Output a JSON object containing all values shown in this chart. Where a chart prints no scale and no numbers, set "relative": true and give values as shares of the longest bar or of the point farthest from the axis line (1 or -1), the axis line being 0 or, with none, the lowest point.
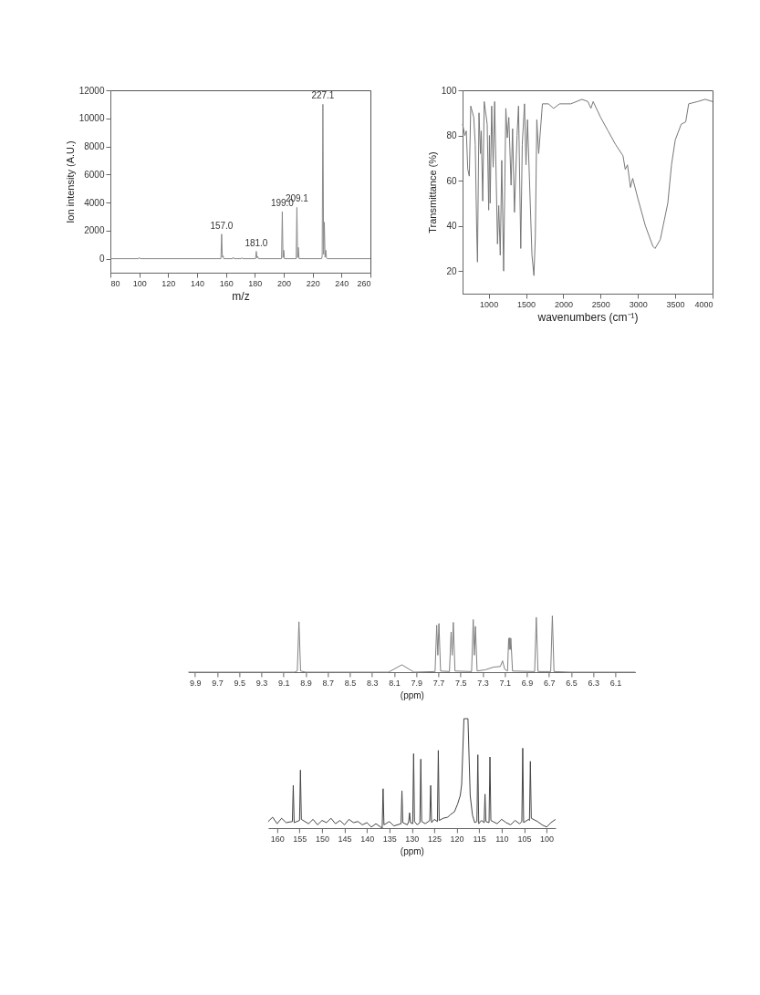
{
  "chart_data": [
    {
      "type": "line",
      "xlabel": "m/z",
      "ylabel": "Ion intensity (A.U.)",
      "xlim": [
        80,
        260
      ],
      "xticks": [
        80,
        100,
        120,
        140,
        160,
        180,
        200,
        220,
        240,
        260
      ],
      "ylim": [
        -1000,
        12000
      ],
      "yticks": [
        0,
        2000,
        4000,
        6000,
        8000,
        10000,
        12000
      ],
      "series": [
        {
          "color": "#8a8a8a",
          "x": [
            80,
            99.5,
            100,
            100.5,
            156.5,
            157,
            157.5,
            158,
            158.5,
            164.5,
            165,
            165.5,
            170.5,
            171,
            171.5,
            180.5,
            181,
            181.5,
            182,
            182.5,
            198.5,
            199,
            199.5,
            200,
            200.5,
            208.6,
            209.1,
            209.6,
            210.1,
            210.6,
            226.3,
            226.6,
            227.1,
            227.6,
            228.1,
            228.6,
            229.1,
            229.6,
            230,
            260
          ],
          "values": [
            0,
            0,
            80,
            0,
            0,
            1750,
            100,
            200,
            0,
            0,
            100,
            0,
            0,
            70,
            0,
            0,
            520,
            50,
            150,
            0,
            0,
            3350,
            80,
            600,
            0,
            0,
            3650,
            80,
            800,
            0,
            0,
            200,
            11000,
            300,
            2600,
            100,
            600,
            50,
            0,
            0
          ]
        }
      ],
      "annotations": [
        {
          "text": "157.0",
          "x": 157,
          "y": 1750
        },
        {
          "text": "181.0",
          "x": 181,
          "y": 520
        },
        {
          "text": "199.0",
          "x": 199,
          "y": 3350
        },
        {
          "text": "209.1",
          "x": 209.1,
          "y": 3650
        },
        {
          "text": "227.1",
          "x": 227.1,
          "y": 11000
        }
      ]
    },
    {
      "type": "line",
      "xlabel": "wavenumbers (cm⁻¹)",
      "ylabel": "Transmittance (%)",
      "xlim": [
        650,
        4000
      ],
      "xticks": [
        1000,
        1500,
        2000,
        2500,
        3000,
        3500,
        4000
      ],
      "ylim": [
        10,
        100
      ],
      "yticks": [
        20,
        40,
        60,
        80,
        100
      ],
      "series": [
        {
          "color": "#777777",
          "x": [
            650,
            680,
            700,
            720,
            740,
            760,
            800,
            820,
            840,
            850,
            870,
            890,
            900,
            920,
            940,
            980,
            1000,
            1010,
            1020,
            1040,
            1060,
            1080,
            1118,
            1135,
            1155,
            1175,
            1200,
            1230,
            1250,
            1270,
            1300,
            1320,
            1345,
            1380,
            1400,
            1430,
            1450,
            1480,
            1500,
            1520,
            1580,
            1606,
            1625,
            1645,
            1670,
            1720,
            1800,
            1870,
            1950,
            2100,
            2250,
            2330,
            2370,
            2400,
            2500,
            2600,
            2700,
            2800,
            2830,
            2860,
            2900,
            2930,
            3000,
            3100,
            3200,
            3230,
            3300,
            3400,
            3450,
            3500,
            3580,
            3640,
            3680,
            3800,
            3900,
            4000
          ],
          "values": [
            85,
            80,
            82,
            65,
            62,
            93,
            88,
            76,
            37,
            24,
            90,
            72,
            82,
            51,
            95,
            85,
            47,
            80,
            50,
            93,
            66,
            95,
            32,
            49,
            27,
            69,
            20,
            92,
            79,
            88,
            58,
            83,
            46,
            80,
            93,
            30,
            76,
            94,
            67,
            87,
            27,
            18,
            35,
            87,
            72,
            94,
            94,
            92,
            94,
            94,
            96,
            95,
            92,
            95,
            88,
            82,
            76,
            71,
            65,
            67,
            57,
            61,
            52,
            40,
            31,
            30,
            34,
            50,
            67,
            78,
            85,
            86,
            94,
            95,
            96,
            95
          ]
        }
      ]
    },
    {
      "type": "line",
      "relative": true,
      "tick_labels": "x",
      "xlabel": "(ppm)",
      "xlim": [
        9.96,
        5.92
      ],
      "xticks": [
        9.9,
        9.7,
        9.5,
        9.3,
        9.1,
        8.9,
        8.7,
        8.5,
        8.3,
        8.1,
        7.9,
        7.7,
        7.5,
        7.3,
        7.1,
        6.9,
        6.7,
        6.5,
        6.3,
        6.1
      ],
      "series": [
        {
          "color": "#808080",
          "x": [
            9.96,
            9.0,
            8.975,
            8.96,
            8.945,
            8.9,
            8.15,
            8.03,
            7.92,
            7.73,
            7.715,
            7.705,
            7.695,
            7.68,
            7.6,
            7.585,
            7.575,
            7.565,
            7.55,
            7.4,
            7.385,
            7.375,
            7.365,
            7.35,
            7.28,
            7.2,
            7.14,
            7.12,
            7.1,
            7.075,
            7.065,
            7.06,
            7.055,
            7.05,
            7.045,
            7.03,
            6.83,
            6.815,
            6.8,
            6.685,
            6.67,
            6.655,
            6.5,
            5.92
          ],
          "values": [
            0,
            0,
            0.02,
            0.89,
            0.02,
            0,
            0,
            0.13,
            0,
            0.01,
            0.83,
            0.3,
            0.86,
            0.02,
            0.01,
            0.71,
            0.3,
            0.88,
            0.02,
            0.01,
            0.93,
            0.3,
            0.81,
            0.02,
            0.04,
            0.09,
            0.1,
            0.2,
            0.05,
            0.02,
            0.6,
            0.4,
            0.61,
            0.4,
            0.6,
            0.02,
            0.01,
            0.97,
            0.01,
            0.01,
            1.0,
            0.01,
            0,
            0
          ]
        }
      ]
    },
    {
      "type": "line",
      "relative": true,
      "tick_labels": "x",
      "xlabel": "(ppm)",
      "xlim": [
        162,
        98
      ],
      "xticks": [
        160,
        155,
        150,
        145,
        140,
        135,
        130,
        125,
        120,
        115,
        110,
        105,
        100
      ],
      "series": [
        {
          "color": "#444444",
          "x": [
            162,
            161,
            160,
            159,
            158,
            156.6,
            156.4,
            156.2,
            155,
            154.8,
            154.6,
            153,
            152,
            151,
            150,
            149,
            148,
            147,
            146,
            145,
            144,
            143,
            142,
            141,
            140,
            139,
            138,
            136.6,
            136.4,
            136.2,
            135,
            134,
            132.4,
            132.2,
            132,
            131,
            130.7,
            130.5,
            130.3,
            129.8,
            129.6,
            129.4,
            128.8,
            128.2,
            128.0,
            127.8,
            127,
            126,
            125.8,
            125.6,
            125,
            124.3,
            124.1,
            123.9,
            123,
            122,
            121.5,
            120.5,
            119.8,
            119.2,
            118.9,
            118.4,
            117.5,
            117.0,
            116.5,
            116.0,
            115.5,
            115.3,
            115.1,
            114.5,
            113.9,
            113.7,
            113.5,
            112.8,
            112.6,
            112.4,
            111,
            110,
            109,
            108,
            107,
            106,
            105.5,
            105.3,
            105.1,
            104,
            103.8,
            103.6,
            103.4,
            102,
            101,
            100,
            99,
            98
          ],
          "values": [
            0.06,
            0.1,
            0.04,
            0.09,
            0.05,
            0.06,
            0.39,
            0.05,
            0.07,
            0.53,
            0.08,
            0.04,
            0.08,
            0.03,
            0.07,
            0.05,
            0.09,
            0.04,
            0.07,
            0.03,
            0.08,
            0.05,
            0.06,
            0.03,
            0.05,
            0.01,
            0.04,
            0.0,
            0.36,
            0.03,
            0.06,
            0.02,
            0.04,
            0.34,
            0.05,
            0.03,
            0.06,
            0.14,
            0.05,
            0.04,
            0.68,
            0.06,
            0.03,
            0.05,
            0.63,
            0.06,
            0.04,
            0.07,
            0.39,
            0.05,
            0.08,
            0.06,
            0.71,
            0.07,
            0.09,
            0.1,
            0.12,
            0.15,
            0.22,
            0.3,
            0.4,
            1.0,
            1.0,
            0.3,
            0.12,
            0.05,
            0.06,
            0.67,
            0.04,
            0.07,
            0.05,
            0.31,
            0.06,
            0.05,
            0.65,
            0.07,
            0.04,
            0.08,
            0.05,
            0.03,
            0.07,
            0.04,
            0.06,
            0.73,
            0.05,
            0.08,
            0.07,
            0.61,
            0.09,
            0.06,
            0.03,
            0.01,
            0.05,
            0.08
          ]
        }
      ]
    }
  ]
}
